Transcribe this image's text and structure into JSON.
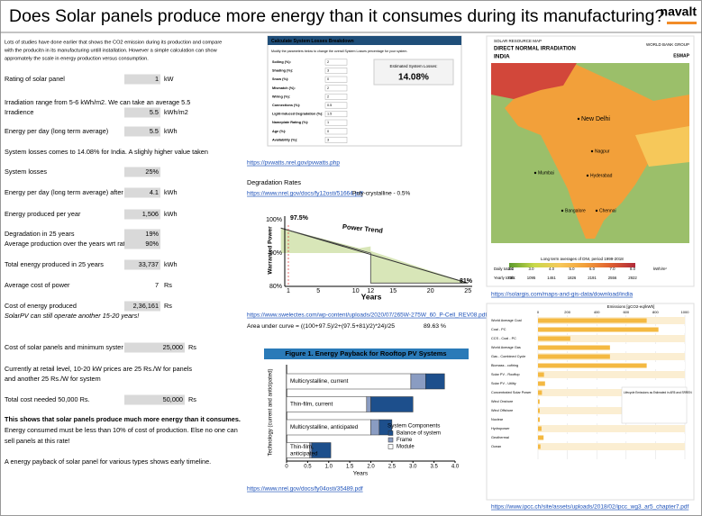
{
  "header": {
    "title": "Does Solar panels produce more energy than it consumes during its manufacturing?",
    "logo": "navalt"
  },
  "left": {
    "lines": [
      {
        "text": "Lots of studies have done earlier that shows the CO2 emission during its production and compare"
      },
      {
        "text": "with the producitn in its manufacturing untill installation. However a simple calculation can show"
      },
      {
        "text": "appromately the scale in energy production versus consumption."
      },
      {
        "text": "Rating of solar panel",
        "value": "1",
        "unit": "kW"
      },
      {
        "text": "Irradiation range from 5-6 kWh/m2. We can take an average 5.5"
      },
      {
        "text": "Irradience",
        "value": "5.5",
        "unit": "kWh/m2"
      },
      {
        "text": "Energy per day (long term average)",
        "value": "5.5",
        "unit": "kWh"
      },
      {
        "text": "System losses comes to 14.08% for India. A slighly higher value taken"
      },
      {
        "text": "System losses",
        "value": "25%"
      },
      {
        "text": "Energy per day (long term average) after",
        "value": "4.1",
        "unit": "kWh"
      },
      {
        "text": "Energy produced per year",
        "value": "1,506",
        "unit": "kWh"
      },
      {
        "text": "Degradation in 25 years",
        "value": "19%"
      },
      {
        "text": "Average production over the years wrt rati",
        "value": "90%"
      },
      {
        "text": "Total energy produced in 25 years",
        "value": "33,737",
        "unit": "kWh"
      },
      {
        "text": "Average cost of power",
        "value": "7",
        "unit": "Rs"
      },
      {
        "text": "Cost of energy produced",
        "value": "2,36,161",
        "unit": "Rs"
      },
      {
        "text": "SolarPV can still operate another 15-20 years!"
      },
      {
        "text": "Cost of solar panels and minimum syster",
        "value": "25,000",
        "unit": "Rs"
      },
      {
        "text": "Currently at retail level, 10-20 kW prices are 25 Rs./W for panels"
      },
      {
        "text": "and another 25 Rs./W for system"
      },
      {
        "text": "Total cost needed 50,000 Rs.",
        "value": "50,000",
        "unit": "Rs"
      },
      {
        "text": "This shows that solar panels produce much more energy than it consumes."
      },
      {
        "text": "Energy consumed must be less than 10% of cost of production. Else no one can"
      },
      {
        "text": "sell panels at this rate!"
      },
      {
        "text": "A energy payback of solar panel for various types shows early timeline."
      }
    ]
  },
  "calculator": {
    "title": "Calculate System Losses Breakdown",
    "subtitle": "Modify the parameters below to change the overall System Losses percentage for your system.",
    "fields": [
      {
        "label": "Soiling (%):",
        "value": "2"
      },
      {
        "label": "Shading (%):",
        "value": "3"
      },
      {
        "label": "Snow (%):",
        "value": "0"
      },
      {
        "label": "Mismatch (%):",
        "value": "2"
      },
      {
        "label": "Wiring (%):",
        "value": "2"
      },
      {
        "label": "Connections (%):",
        "value": "0.5"
      },
      {
        "label": "Light-Induced Degradation (%):",
        "value": "1.5"
      },
      {
        "label": "Nameplate Rating (%):",
        "value": "1"
      },
      {
        "label": "Age (%):",
        "value": "0"
      },
      {
        "label": "Availability (%):",
        "value": "3"
      }
    ],
    "result_label": "Estimated System Losses:",
    "result": "14.08%",
    "link": "https://pvwatts.nrel.gov/pvwatts.php"
  },
  "degradation": {
    "heading": "Degradation Rates",
    "link": "https://www.nrel.gov/docs/fy12osti/51664.pdf",
    "note": "Poly-crystalline - 0.5%",
    "y_label": "Warranted Power",
    "yticks": [
      "100%",
      "90%",
      "80%"
    ],
    "start": "97.5%",
    "trend": "Power Trend",
    "end": "81%",
    "xticks": [
      "1",
      "5",
      "10",
      "12",
      "15",
      "20",
      "25"
    ],
    "x_label": "Years",
    "link2": "https://www.swelectes.com/wp-content/uploads/2020/07/265W-275W_60_P-Cell_REV08.pdf",
    "area_formula": "Area under curve = ((100+97.5)/2+(97.5+81)/2)*24)/25",
    "area_result": "89.63 %"
  },
  "payback": {
    "title": "Figure 1. Energy Payback for Rooftop PV Systems",
    "y_label": "Technology (current and anticipated)",
    "x_label": "Years",
    "xticks": [
      "0",
      "0.5",
      "1.0",
      "1.5",
      "2.0",
      "2.5",
      "3.0",
      "3.5",
      "4.0"
    ],
    "legend_title": "System Components",
    "components": [
      "Balance of system",
      "Frame",
      "Module"
    ],
    "bars": [
      {
        "label": [
          "Multicrystalline, current"
        ],
        "values": [
          0.45,
          0.35,
          2.95
        ]
      },
      {
        "label": [
          "Thin-film, current"
        ],
        "values": [
          1.0,
          0.1,
          1.9
        ]
      },
      {
        "label": [
          "Multicrystalline, anticipated"
        ],
        "values": [
          0.3,
          0.2,
          2.0
        ]
      },
      {
        "label": [
          "Thin-film,",
          "anticipated"
        ],
        "values": [
          0.45,
          0.05,
          0.55
        ]
      }
    ],
    "link": "https://www.nrel.gov/docs/fy04osti/35489.pdf"
  },
  "map": {
    "label": "SOLAR RESOURCE MAP",
    "title": "DIRECT NORMAL IRRADIATION",
    "country": "INDIA",
    "org1": "WORLD BANK GROUP",
    "org2": "ESMAP",
    "cities": [
      "New Delhi",
      "Mumbai",
      "Hyderabad",
      "Bangalore",
      "Chennai",
      "Nagpur"
    ],
    "legend_title": "Long term averages of DNI, period 1999-2018",
    "daily_label": "Daily totals:",
    "daily": [
      "2.0",
      "3.0",
      "4.0",
      "5.0",
      "6.0",
      "7.0",
      "8.0"
    ],
    "unit": "kWh/m²",
    "yearly_label": "Yearly totals:",
    "yearly": [
      "730",
      "1095",
      "1461",
      "1826",
      "2191",
      "2556",
      "2922"
    ],
    "link": "https://solargis.com/maps-and-gis-data/download/india"
  },
  "ipcc": {
    "axis_title": "Emissions [gCO2-eq/kWh]",
    "xlim": [
      0,
      1000
    ],
    "xticks": [
      0,
      200,
      400,
      600,
      800,
      1000
    ],
    "categories": [
      "World Average Coal",
      "Coal - PC",
      "CCS - Coal - PC",
      "World Average Gas",
      "Gas - Combined Cycle",
      "Biomass - cofiring",
      "Solar PV - Rooftop",
      "Solar PV - Utility",
      "Concentrated Solar Power",
      "Wind Onshore",
      "Wind Offshore",
      "Nuclear",
      "Hydropower",
      "Geothermal",
      "Ocean"
    ],
    "values": [
      740,
      820,
      220,
      490,
      490,
      740,
      41,
      48,
      27,
      11,
      12,
      12,
      24,
      38,
      17
    ],
    "legend_title": "Lifecycle Emissions as Estimated in AR5 and SRREN",
    "link": "https://www.ipcc.ch/site/assets/uploads/2018/02/ipcc_wg3_ar5_chapter7.pdf"
  }
}
